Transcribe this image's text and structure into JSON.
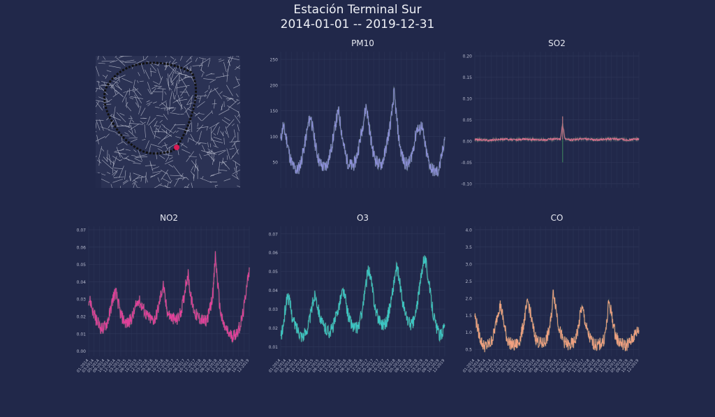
{
  "header": {
    "title_line1": "Estación Terminal Sur",
    "title_line2": "2014-01-01 -- 2019-12-31"
  },
  "colors": {
    "background": "#21284a",
    "grid": "#2e3658",
    "map_background": "#2b3254",
    "map_roads": "#d8dbe8",
    "ring_road": "#111111",
    "station_marker": "#d81b55"
  },
  "map": {
    "station_marker": "station-location-dot"
  },
  "x_tick_labels": [
    "01-2014",
    "03-2014",
    "05-2014",
    "08-2014",
    "10-2014",
    "12-2014",
    "03-2015",
    "05-2015",
    "08-2015",
    "10-2015",
    "12-2015",
    "03-2016",
    "05-2016",
    "08-2016",
    "10-2016",
    "12-2016",
    "03-2017",
    "05-2017",
    "08-2017",
    "10-2017",
    "12-2017",
    "03-2018",
    "05-2018",
    "08-2018",
    "10-2018",
    "12-2018",
    "03-2019",
    "05-2019",
    "08-2019",
    "10-2019",
    "12-2019"
  ],
  "chart_data": [
    {
      "type": "line",
      "title": "PM10",
      "color": "#8c8fd8",
      "x_range": [
        "2014-01-01",
        "2019-12-31"
      ],
      "ylim": [
        0,
        265
      ],
      "yticks": [
        50,
        100,
        150,
        200,
        250
      ],
      "grid": true,
      "show_x_labels": false,
      "series": [
        {
          "x_start": "2014-01",
          "x_step": "month",
          "values": [
            92,
            120,
            105,
            85,
            60,
            45,
            38,
            34,
            40,
            55,
            75,
            100,
            125,
            140,
            110,
            85,
            62,
            48,
            42,
            40,
            46,
            58,
            80,
            105,
            130,
            150,
            120,
            90,
            65,
            50,
            45,
            42,
            48,
            62,
            85,
            110,
            135,
            160,
            130,
            95,
            70,
            55,
            48,
            44,
            50,
            65,
            88,
            112,
            140,
            185,
            145,
            100,
            72,
            55,
            48,
            45,
            52,
            70,
            92,
            118,
            110,
            125,
            95,
            70,
            52,
            40,
            34,
            30,
            32,
            45,
            70,
            100
          ]
        }
      ]
    },
    {
      "type": "line",
      "title": "SO2",
      "color": "#e07090",
      "x_range": [
        "2014-01-01",
        "2019-12-31"
      ],
      "ylim": [
        -0.11,
        0.21
      ],
      "yticks": [
        -0.1,
        -0.05,
        0.0,
        0.05,
        0.1,
        0.15,
        0.2
      ],
      "grid": true,
      "show_x_labels": false,
      "series": [
        {
          "x_start": "2014-01",
          "x_step": "month",
          "values": [
            0.004,
            0.004,
            0.003,
            0.003,
            0.003,
            0.002,
            0.002,
            0.002,
            0.003,
            0.003,
            0.004,
            0.004,
            0.004,
            0.005,
            0.005,
            0.004,
            0.003,
            0.003,
            0.003,
            0.003,
            0.004,
            0.004,
            0.005,
            0.005,
            0.004,
            0.004,
            0.004,
            0.003,
            0.003,
            0.003,
            0.003,
            0.003,
            0.004,
            0.004,
            0.005,
            0.005,
            0.005,
            0.004,
            0.04,
            0.006,
            0.004,
            0.003,
            0.003,
            0.003,
            0.004,
            0.004,
            0.005,
            0.005,
            0.005,
            0.004,
            0.004,
            0.003,
            0.003,
            0.003,
            0.003,
            0.003,
            0.004,
            0.004,
            0.005,
            0.005,
            0.005,
            0.005,
            0.004,
            0.004,
            0.004,
            0.003,
            0.003,
            0.003,
            0.004,
            0.004,
            0.005,
            0.005
          ]
        }
      ]
    },
    {
      "type": "line",
      "title": "NO2",
      "color": "#e0409a",
      "x_range": [
        "2014-01-01",
        "2019-12-31"
      ],
      "ylim": [
        -0.003,
        0.072
      ],
      "yticks": [
        0.0,
        0.01,
        0.02,
        0.03,
        0.04,
        0.05,
        0.06,
        0.07
      ],
      "grid": true,
      "show_x_labels": true,
      "series": [
        {
          "x_start": "2014-01",
          "x_step": "month",
          "values": [
            0.03,
            0.028,
            0.022,
            0.019,
            0.016,
            0.014,
            0.013,
            0.014,
            0.016,
            0.02,
            0.026,
            0.032,
            0.034,
            0.028,
            0.022,
            0.019,
            0.017,
            0.016,
            0.017,
            0.019,
            0.022,
            0.026,
            0.03,
            0.027,
            0.025,
            0.022,
            0.02,
            0.019,
            0.018,
            0.018,
            0.021,
            0.026,
            0.033,
            0.038,
            0.028,
            0.022,
            0.02,
            0.019,
            0.018,
            0.018,
            0.02,
            0.024,
            0.03,
            0.04,
            0.044,
            0.032,
            0.026,
            0.022,
            0.02,
            0.019,
            0.018,
            0.017,
            0.018,
            0.021,
            0.026,
            0.034,
            0.055,
            0.04,
            0.025,
            0.018,
            0.014,
            0.012,
            0.01,
            0.009,
            0.009,
            0.01,
            0.012,
            0.015,
            0.02,
            0.028,
            0.04,
            0.045
          ]
        }
      ]
    },
    {
      "type": "line",
      "title": "O3",
      "color": "#3cc6c4",
      "x_range": [
        "2014-01-01",
        "2019-12-31"
      ],
      "ylim": [
        0.005,
        0.074
      ],
      "yticks": [
        0.01,
        0.02,
        0.03,
        0.04,
        0.05,
        0.06,
        0.07
      ],
      "grid": true,
      "show_x_labels": true,
      "series": [
        {
          "x_start": "2014-01",
          "x_step": "month",
          "values": [
            0.015,
            0.02,
            0.03,
            0.038,
            0.033,
            0.026,
            0.022,
            0.02,
            0.018,
            0.016,
            0.016,
            0.018,
            0.022,
            0.027,
            0.034,
            0.038,
            0.032,
            0.026,
            0.022,
            0.02,
            0.019,
            0.018,
            0.019,
            0.022,
            0.026,
            0.031,
            0.036,
            0.04,
            0.035,
            0.028,
            0.024,
            0.021,
            0.02,
            0.02,
            0.022,
            0.028,
            0.035,
            0.044,
            0.052,
            0.046,
            0.038,
            0.03,
            0.026,
            0.024,
            0.022,
            0.022,
            0.024,
            0.03,
            0.036,
            0.044,
            0.052,
            0.048,
            0.04,
            0.032,
            0.027,
            0.024,
            0.022,
            0.022,
            0.025,
            0.032,
            0.04,
            0.05,
            0.058,
            0.054,
            0.045,
            0.036,
            0.028,
            0.022,
            0.018,
            0.016,
            0.018,
            0.024
          ]
        }
      ]
    },
    {
      "type": "line",
      "title": "CO",
      "color": "#f0a080",
      "x_range": [
        "2014-01-01",
        "2019-12-31"
      ],
      "ylim": [
        0.3,
        4.1
      ],
      "yticks": [
        0.5,
        1.0,
        1.5,
        2.0,
        2.5,
        3.0,
        3.5,
        4.0
      ],
      "grid": true,
      "show_x_labels": true,
      "series": [
        {
          "x_start": "2014-01",
          "x_step": "month",
          "values": [
            1.5,
            1.2,
            0.9,
            0.7,
            0.6,
            0.6,
            0.65,
            0.7,
            0.9,
            1.2,
            1.6,
            1.8,
            1.5,
            1.1,
            0.8,
            0.7,
            0.65,
            0.6,
            0.65,
            0.7,
            0.9,
            1.2,
            1.6,
            1.9,
            1.6,
            1.2,
            0.9,
            0.75,
            0.7,
            0.65,
            0.7,
            0.8,
            1.0,
            1.4,
            2.2,
            1.8,
            1.3,
            1.0,
            0.8,
            0.7,
            0.65,
            0.6,
            0.65,
            0.7,
            0.9,
            1.2,
            1.7,
            1.6,
            1.2,
            0.95,
            0.8,
            0.7,
            0.65,
            0.6,
            0.65,
            0.7,
            0.8,
            1.2,
            1.9,
            1.6,
            1.2,
            0.9,
            0.75,
            0.7,
            0.65,
            0.6,
            0.65,
            0.7,
            0.8,
            0.9,
            1.0,
            1.1
          ]
        }
      ]
    }
  ]
}
